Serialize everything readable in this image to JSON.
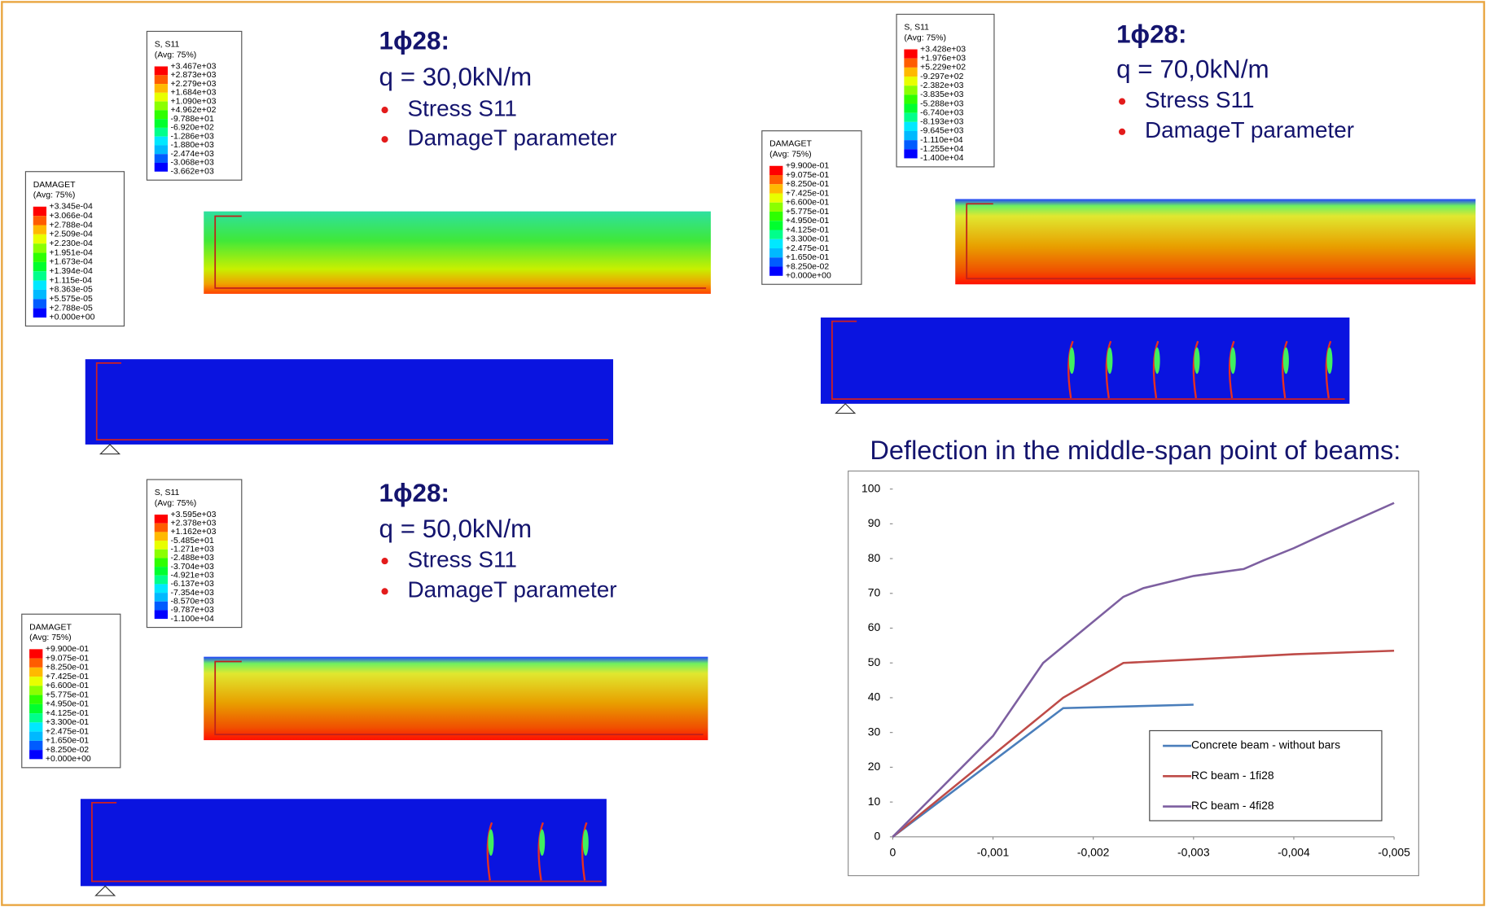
{
  "panels": [
    {
      "heading": "1ϕ28:",
      "load": "q = 30,0kN/m",
      "bullets": [
        "Stress S11",
        "DamageT parameter"
      ],
      "s11_legend": {
        "title": "S, S11",
        "subtitle": "(Avg: 75%)",
        "values": [
          "+3.467e+03",
          "+2.873e+03",
          "+2.279e+03",
          "+1.684e+03",
          "+1.090e+03",
          "+4.962e+02",
          "-9.788e+01",
          "-6.920e+02",
          "-1.286e+03",
          "-1.880e+03",
          "-2.474e+03",
          "-3.068e+03",
          "-3.662e+03"
        ]
      },
      "damage_legend": {
        "title": "DAMAGET",
        "subtitle": "(Avg: 75%)",
        "values": [
          "+3.345e-04",
          "+3.066e-04",
          "+2.788e-04",
          "+2.509e-04",
          "+2.230e-04",
          "+1.951e-04",
          "+1.673e-04",
          "+1.394e-04",
          "+1.115e-04",
          "+8.363e-05",
          "+5.575e-05",
          "+2.788e-05",
          "+0.000e+00"
        ]
      }
    },
    {
      "heading": "1ϕ28:",
      "load": "q = 50,0kN/m",
      "bullets": [
        "Stress S11",
        "DamageT parameter"
      ],
      "s11_legend": {
        "title": "S, S11",
        "subtitle": "(Avg: 75%)",
        "values": [
          "+3.595e+03",
          "+2.378e+03",
          "+1.162e+03",
          "-5.485e+01",
          "-1.271e+03",
          "-2.488e+03",
          "-3.704e+03",
          "-4.921e+03",
          "-6.137e+03",
          "-7.354e+03",
          "-8.570e+03",
          "-9.787e+03",
          "-1.100e+04"
        ]
      },
      "damage_legend": {
        "title": "DAMAGET",
        "subtitle": "(Avg: 75%)",
        "values": [
          "+9.900e-01",
          "+9.075e-01",
          "+8.250e-01",
          "+7.425e-01",
          "+6.600e-01",
          "+5.775e-01",
          "+4.950e-01",
          "+4.125e-01",
          "+3.300e-01",
          "+2.475e-01",
          "+1.650e-01",
          "+8.250e-02",
          "+0.000e+00"
        ]
      }
    },
    {
      "heading": "1ϕ28:",
      "load": "q = 70,0kN/m",
      "bullets": [
        "Stress S11",
        "DamageT parameter"
      ],
      "s11_legend": {
        "title": "S, S11",
        "subtitle": "(Avg: 75%)",
        "values": [
          "+3.428e+03",
          "+1.976e+03",
          "+5.229e+02",
          "-9.297e+02",
          "-2.382e+03",
          "-3.835e+03",
          "-5.288e+03",
          "-6.740e+03",
          "-8.193e+03",
          "-9.645e+03",
          "-1.110e+04",
          "-1.255e+04",
          "-1.400e+04"
        ]
      },
      "damage_legend": {
        "title": "DAMAGET",
        "subtitle": "(Avg: 75%)",
        "values": [
          "+9.900e-01",
          "+9.075e-01",
          "+8.250e-01",
          "+7.425e-01",
          "+6.600e-01",
          "+5.775e-01",
          "+4.950e-01",
          "+4.125e-01",
          "+3.300e-01",
          "+2.475e-01",
          "+1.650e-01",
          "+8.250e-02",
          "+0.000e+00"
        ]
      }
    }
  ],
  "chart_data": {
    "type": "line",
    "title": "Deflection in the middle-span point of beams:",
    "xlim": [
      0,
      -0.005
    ],
    "xticks": [
      0,
      {
        "value": -0.001,
        "label": "-0,001"
      },
      {
        "value": -0.002,
        "label": "-0,002"
      },
      {
        "value": -0.003,
        "label": "-0,003"
      },
      {
        "value": -0.004,
        "label": "-0,004"
      },
      {
        "value": -0.005,
        "label": "-0,005"
      }
    ],
    "ylim": [
      0,
      100
    ],
    "yticks": [
      0,
      10,
      20,
      30,
      40,
      50,
      60,
      70,
      80,
      90,
      100
    ],
    "grid": false,
    "legend": "lower-right",
    "series": [
      {
        "name": "Concrete beam - without bars",
        "color": "#4a7ebb",
        "x": [
          0,
          -0.0017,
          -0.003
        ],
        "values": [
          0,
          37,
          38
        ]
      },
      {
        "name": "RC beam - 1fi28",
        "color": "#be4b48",
        "x": [
          0,
          -0.0017,
          -0.0023,
          -0.003,
          -0.004,
          -0.005
        ],
        "values": [
          0,
          40,
          50,
          51,
          52.5,
          53.5
        ]
      },
      {
        "name": "RC beam - 4fi28",
        "color": "#7d5fa0",
        "x": [
          0,
          -0.001,
          -0.0015,
          -0.0023,
          -0.0025,
          -0.003,
          -0.0035,
          -0.0037,
          -0.004,
          -0.0043,
          -0.005
        ],
        "values": [
          0,
          29,
          50,
          69,
          71.5,
          75,
          77,
          79.5,
          83,
          87,
          96
        ]
      }
    ]
  }
}
